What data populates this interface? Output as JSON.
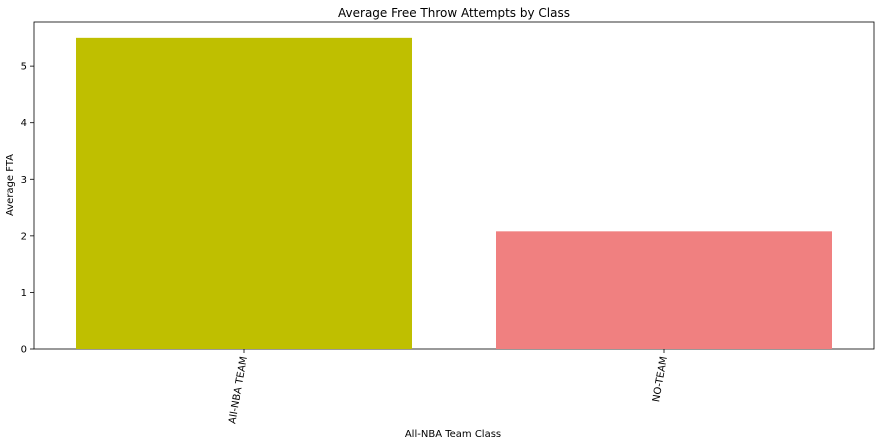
{
  "chart_data": {
    "type": "bar",
    "title": "Average Free Throw Attempts by Class",
    "xlabel": "All-NBA Team Class",
    "ylabel": "Average FTA",
    "categories": [
      "All-NBA TEAM",
      "NO-TEAM"
    ],
    "values": [
      5.5,
      2.08
    ],
    "colors": [
      "#bfbf00",
      "#f08080"
    ],
    "ylim": [
      0,
      5.78
    ],
    "yticks": [
      0,
      1,
      2,
      3,
      4,
      5
    ],
    "xtick_rotation_deg": -80,
    "grid": false,
    "legend": "none"
  }
}
